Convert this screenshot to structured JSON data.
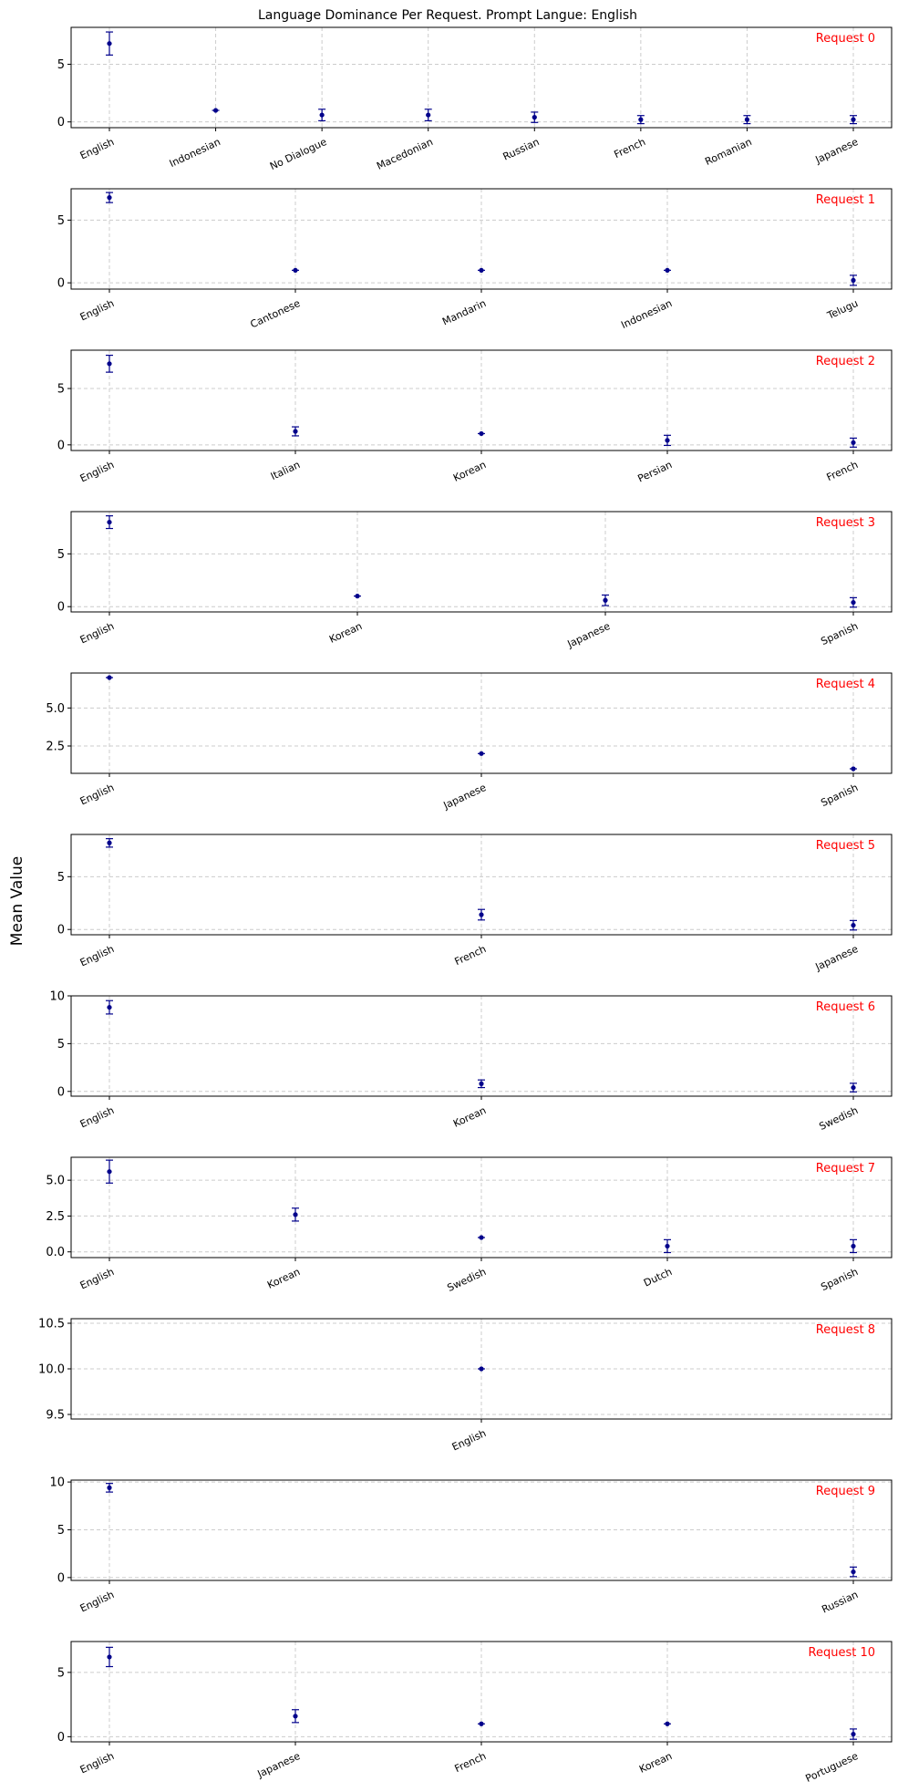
{
  "chart_data": {
    "type": "scatter",
    "title": "Language Dominance Per Request. Prompt Langue: English",
    "ylabel": "Mean Value",
    "grid": true,
    "marker_color": "#00008b",
    "label_color": "#ff0000",
    "panels": [
      {
        "label": "Request 0",
        "categories": [
          "English",
          "Indonesian",
          "No Dialogue",
          "Macedonian",
          "Russian",
          "French",
          "Romanian",
          "Japanese"
        ],
        "values": [
          6.8,
          1.0,
          0.6,
          0.6,
          0.4,
          0.2,
          0.2,
          0.2
        ],
        "errors": [
          1.0,
          0.0,
          0.5,
          0.5,
          0.45,
          0.35,
          0.35,
          0.35
        ],
        "ylim": [
          -0.5,
          8.2
        ],
        "yticks": [
          0,
          5
        ],
        "yticklabels": [
          "0",
          "5"
        ]
      },
      {
        "label": "Request 1",
        "categories": [
          "English",
          "Cantonese",
          "Mandarin",
          "Indonesian",
          "Telugu"
        ],
        "values": [
          6.8,
          1.0,
          1.0,
          1.0,
          0.2
        ],
        "errors": [
          0.4,
          0.0,
          0.0,
          0.0,
          0.4
        ],
        "ylim": [
          -0.5,
          7.5
        ],
        "yticks": [
          0,
          5
        ],
        "yticklabels": [
          "0",
          "5"
        ]
      },
      {
        "label": "Request 2",
        "categories": [
          "English",
          "Italian",
          "Korean",
          "Persian",
          "French"
        ],
        "values": [
          7.2,
          1.2,
          1.0,
          0.4,
          0.2
        ],
        "errors": [
          0.75,
          0.4,
          0.0,
          0.45,
          0.4
        ],
        "ylim": [
          -0.5,
          8.4
        ],
        "yticks": [
          0,
          5
        ],
        "yticklabels": [
          "0",
          "5"
        ]
      },
      {
        "label": "Request 3",
        "categories": [
          "English",
          "Korean",
          "Japanese",
          "Spanish"
        ],
        "values": [
          8.0,
          1.0,
          0.6,
          0.4
        ],
        "errors": [
          0.6,
          0.0,
          0.5,
          0.45
        ],
        "ylim": [
          -0.5,
          9.0
        ],
        "yticks": [
          0,
          5
        ],
        "yticklabels": [
          "0",
          "5"
        ]
      },
      {
        "label": "Request 4",
        "categories": [
          "English",
          "Japanese",
          "Spanish"
        ],
        "values": [
          7.0,
          2.0,
          1.0
        ],
        "errors": [
          0.0,
          0.0,
          0.0
        ],
        "ylim": [
          0.7,
          7.3
        ],
        "yticks": [
          2.5,
          5.0
        ],
        "yticklabels": [
          "2.5",
          "5.0"
        ]
      },
      {
        "label": "Request 5",
        "categories": [
          "English",
          "French",
          "Japanese"
        ],
        "values": [
          8.2,
          1.4,
          0.4
        ],
        "errors": [
          0.4,
          0.5,
          0.45
        ],
        "ylim": [
          -0.5,
          9.0
        ],
        "yticks": [
          0,
          5
        ],
        "yticklabels": [
          "0",
          "5"
        ]
      },
      {
        "label": "Request 6",
        "categories": [
          "English",
          "Korean",
          "Swedish"
        ],
        "values": [
          8.8,
          0.8,
          0.4
        ],
        "errors": [
          0.7,
          0.4,
          0.45
        ],
        "ylim": [
          -0.5,
          10.0
        ],
        "yticks": [
          0,
          5,
          10
        ],
        "yticklabels": [
          "0",
          "5",
          "10"
        ]
      },
      {
        "label": "Request 7",
        "categories": [
          "English",
          "Korean",
          "Swedish",
          "Dutch",
          "Spanish"
        ],
        "values": [
          5.6,
          2.6,
          1.0,
          0.4,
          0.4
        ],
        "errors": [
          0.8,
          0.45,
          0.0,
          0.45,
          0.45
        ],
        "ylim": [
          -0.4,
          6.6
        ],
        "yticks": [
          0.0,
          2.5,
          5.0
        ],
        "yticklabels": [
          "0.0",
          "2.5",
          "5.0"
        ]
      },
      {
        "label": "Request 8",
        "categories": [
          "English"
        ],
        "values": [
          10.0
        ],
        "errors": [
          0.0
        ],
        "ylim": [
          9.45,
          10.55
        ],
        "yticks": [
          9.5,
          10.0,
          10.5
        ],
        "yticklabels": [
          "9.5",
          "10.0",
          "10.5"
        ]
      },
      {
        "label": "Request 9",
        "categories": [
          "English",
          "Russian"
        ],
        "values": [
          9.4,
          0.6
        ],
        "errors": [
          0.45,
          0.5
        ],
        "ylim": [
          -0.3,
          10.2
        ],
        "yticks": [
          0,
          5,
          10
        ],
        "yticklabels": [
          "0",
          "5",
          "10"
        ]
      },
      {
        "label": "Request 10",
        "categories": [
          "English",
          "Japanese",
          "French",
          "Korean",
          "Portuguese"
        ],
        "values": [
          6.2,
          1.6,
          1.0,
          1.0,
          0.2
        ],
        "errors": [
          0.75,
          0.5,
          0.0,
          0.0,
          0.4
        ],
        "ylim": [
          -0.4,
          7.4
        ],
        "yticks": [
          0,
          5
        ],
        "yticklabels": [
          "0",
          "5"
        ]
      }
    ]
  }
}
